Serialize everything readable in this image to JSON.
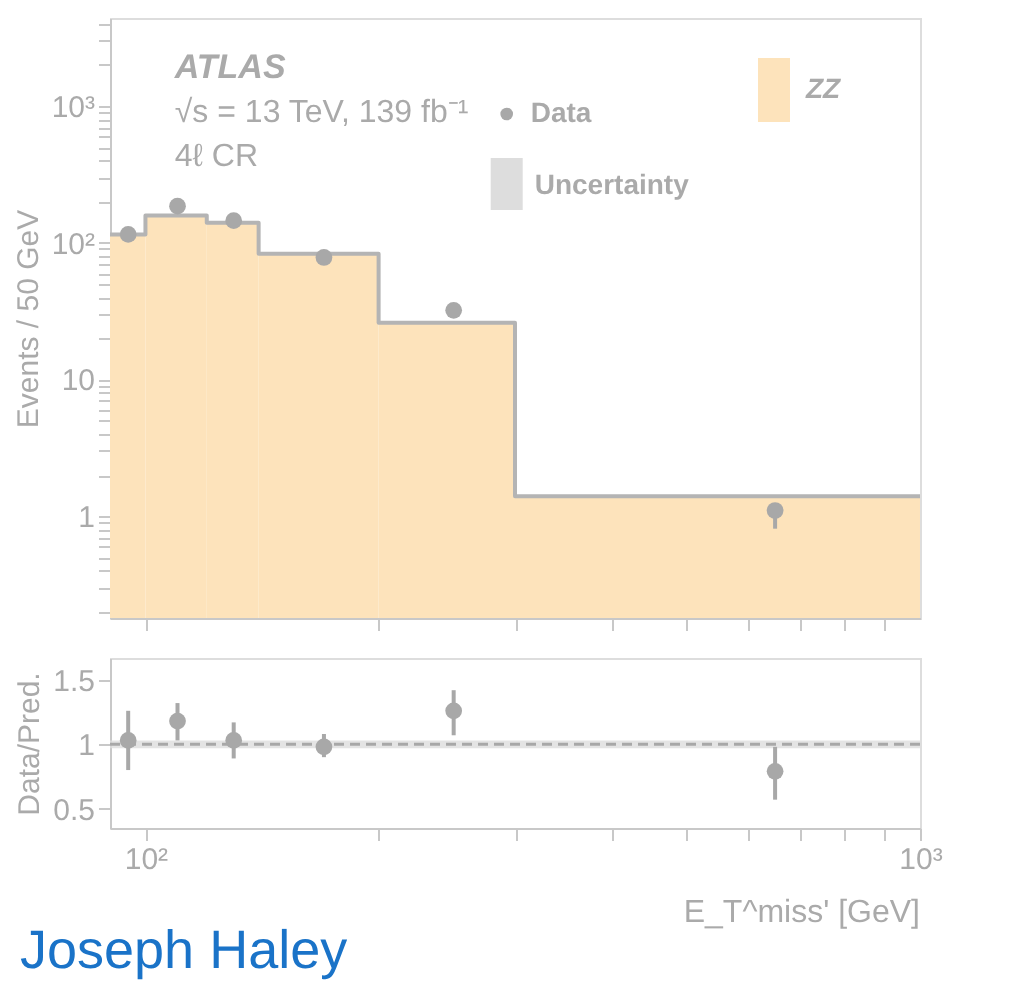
{
  "chart_data": [
    {
      "type": "histogram",
      "ylabel": "Events / 50 GeV",
      "xlim": [
        90,
        1000
      ],
      "ylim": [
        0.18,
        4400
      ],
      "log": "xy",
      "grid": false,
      "legend": "top right",
      "tick_labels": "y",
      "xticks": [
        {
          "value": 100,
          "label": null
        },
        {
          "value": 200,
          "label": null
        },
        {
          "value": 300,
          "label": null
        },
        {
          "value": 400,
          "label": null
        },
        {
          "value": 500,
          "label": null
        },
        {
          "value": 600,
          "label": null
        },
        {
          "value": 700,
          "label": null
        },
        {
          "value": 800,
          "label": null
        },
        {
          "value": 900,
          "label": null
        }
      ],
      "yticks": [
        {
          "value": 0.2,
          "label": null
        },
        {
          "value": 0.3,
          "label": null
        },
        {
          "value": 0.4,
          "label": null
        },
        {
          "value": 0.5,
          "label": null
        },
        {
          "value": 0.6,
          "label": null
        },
        {
          "value": 0.7,
          "label": null
        },
        {
          "value": 0.8,
          "label": null
        },
        {
          "value": 0.9,
          "label": null
        },
        1,
        {
          "value": 2,
          "label": null
        },
        {
          "value": 3,
          "label": null
        },
        {
          "value": 4,
          "label": null
        },
        {
          "value": 5,
          "label": null
        },
        {
          "value": 6,
          "label": null
        },
        {
          "value": 7,
          "label": null
        },
        {
          "value": 8,
          "label": null
        },
        {
          "value": 9,
          "label": null
        },
        10,
        {
          "value": 20,
          "label": null
        },
        {
          "value": 30,
          "label": null
        },
        {
          "value": 40,
          "label": null
        },
        {
          "value": 50,
          "label": null
        },
        {
          "value": 60,
          "label": null
        },
        {
          "value": 70,
          "label": null
        },
        {
          "value": 80,
          "label": null
        },
        {
          "value": 90,
          "label": null
        },
        {
          "value": 100,
          "label": "10²"
        },
        {
          "value": 200,
          "label": null
        },
        {
          "value": 300,
          "label": null
        },
        {
          "value": 400,
          "label": null
        },
        {
          "value": 500,
          "label": null
        },
        {
          "value": 600,
          "label": null
        },
        {
          "value": 700,
          "label": null
        },
        {
          "value": 800,
          "label": null
        },
        {
          "value": 900,
          "label": null
        },
        {
          "value": 1000,
          "label": "10³"
        },
        {
          "value": 2000,
          "label": null
        },
        {
          "value": 3000,
          "label": null
        },
        {
          "value": 4000,
          "label": null
        }
      ],
      "annotations": [
        "ATLAS",
        "√s = 13 TeV, 139 fb⁻¹",
        "4ℓ CR"
      ],
      "series": [
        {
          "name": "ZZ",
          "type": "histogram",
          "color": "#fde3bb",
          "bins": [
            90,
            100,
            120,
            140,
            200,
            300,
            1000
          ],
          "values": [
            115,
            158,
            140,
            83,
            26,
            1.4
          ]
        },
        {
          "name": "Data",
          "type": "scatter",
          "color": "#a8a8a8",
          "x": [
            95,
            110,
            130,
            170,
            250,
            650
          ],
          "values": [
            115,
            185,
            145,
            78,
            32,
            1.1
          ],
          "errors": [
            null,
            null,
            null,
            null,
            null,
            [
              0.81,
              1.24
            ]
          ]
        }
      ]
    },
    {
      "type": "scatter",
      "ylabel": "Data/Pred.",
      "xlabel": "E_T^miss' [GeV]",
      "xlim": [
        90,
        1000
      ],
      "ylim": [
        0.35,
        1.67
      ],
      "log": "x",
      "grid": false,
      "color": "#a8a8a8",
      "marker": "circle",
      "xticks": [
        {
          "value": 100,
          "label": "10²"
        },
        {
          "value": 200,
          "label": null
        },
        {
          "value": 300,
          "label": null
        },
        {
          "value": 400,
          "label": null
        },
        {
          "value": 500,
          "label": null
        },
        {
          "value": 600,
          "label": null
        },
        {
          "value": 700,
          "label": null
        },
        {
          "value": 800,
          "label": null
        },
        {
          "value": 900,
          "label": null
        },
        {
          "value": 1000,
          "label": "10³"
        }
      ],
      "yticks": [
        0.5,
        1,
        1.5
      ],
      "x": [
        95,
        110,
        130,
        170,
        250,
        650
      ],
      "values": [
        1.03,
        1.18,
        1.03,
        0.98,
        1.26,
        0.79
      ],
      "errors": [
        [
          0.8,
          1.26
        ],
        [
          1.03,
          1.32
        ],
        [
          0.89,
          1.17
        ],
        [
          0.9,
          1.08
        ],
        [
          1.07,
          1.42
        ],
        [
          0.57,
          0.98
        ]
      ],
      "ref_lines": [
        {
          "axis": "y",
          "value": 1,
          "line_style": "dashed",
          "color": "#a8a8a8"
        }
      ],
      "bands": [
        {
          "axis": "y",
          "from": 0.97,
          "to": 1.03,
          "label": "Uncertainty",
          "color": "#dddddd"
        }
      ],
      "annotations": [
        "Joseph Haley"
      ]
    }
  ]
}
